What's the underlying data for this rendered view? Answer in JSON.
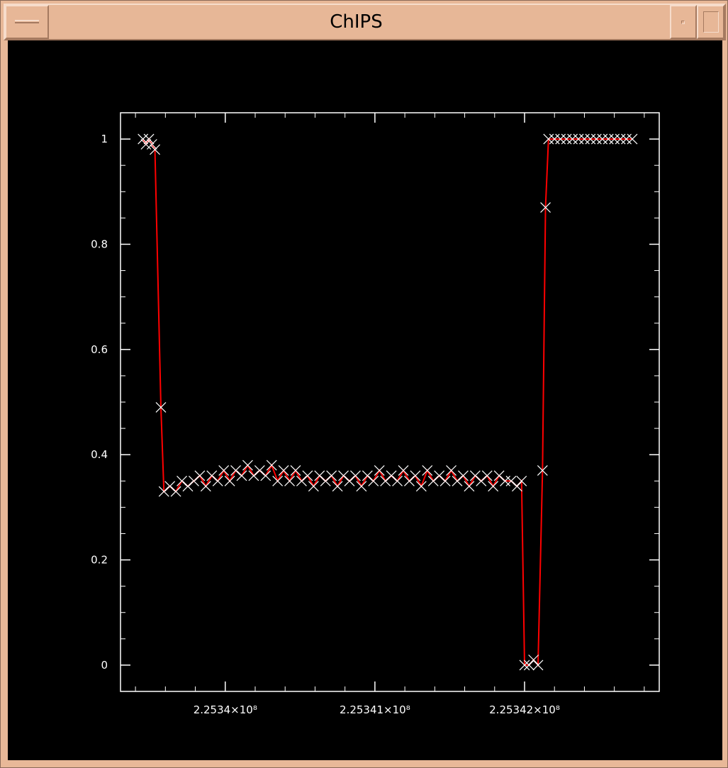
{
  "window": {
    "title": "ChIPS"
  },
  "icons": {
    "menu": "window-menu-icon",
    "minimize": "minimize-icon",
    "maximize": "maximize-icon"
  },
  "colors": {
    "frame": "#e8b898",
    "canvas": "#000000",
    "axes": "#ffffff",
    "line": "#ff0000",
    "markers": "#ffffff"
  },
  "chart_data": {
    "type": "line",
    "title": "",
    "xlabel": "",
    "ylabel": "",
    "marker": "x",
    "xlim": [
      225339.3,
      225342.9
    ],
    "ylim": [
      -0.05,
      1.05
    ],
    "y_ticks": [
      {
        "value": 0,
        "label": "0"
      },
      {
        "value": 0.2,
        "label": "0.2"
      },
      {
        "value": 0.4,
        "label": "0.4"
      },
      {
        "value": 0.6,
        "label": "0.6"
      },
      {
        "value": 0.8,
        "label": "0.8"
      },
      {
        "value": 1,
        "label": "1"
      }
    ],
    "x_ticks": [
      {
        "value": 225340,
        "label": "2.2534×10⁸"
      },
      {
        "value": 225341,
        "label": "2.25341×10⁸"
      },
      {
        "value": 225342,
        "label": "2.25342×10⁸"
      }
    ],
    "series": [
      {
        "points": [
          [
            225339.45,
            1.0
          ],
          [
            225339.47,
            0.99
          ],
          [
            225339.49,
            1.0
          ],
          [
            225339.51,
            0.99
          ],
          [
            225339.53,
            0.98
          ],
          [
            225339.57,
            0.49
          ],
          [
            225339.59,
            0.33
          ],
          [
            225339.63,
            0.34
          ],
          [
            225339.67,
            0.33
          ],
          [
            225339.71,
            0.35
          ],
          [
            225339.75,
            0.34
          ],
          [
            225339.79,
            0.35
          ],
          [
            225339.83,
            0.36
          ],
          [
            225339.87,
            0.34
          ],
          [
            225339.91,
            0.36
          ],
          [
            225339.95,
            0.35
          ],
          [
            225339.99,
            0.37
          ],
          [
            225340.03,
            0.35
          ],
          [
            225340.07,
            0.37
          ],
          [
            225340.11,
            0.36
          ],
          [
            225340.15,
            0.38
          ],
          [
            225340.19,
            0.36
          ],
          [
            225340.23,
            0.37
          ],
          [
            225340.27,
            0.36
          ],
          [
            225340.31,
            0.38
          ],
          [
            225340.35,
            0.35
          ],
          [
            225340.39,
            0.37
          ],
          [
            225340.43,
            0.35
          ],
          [
            225340.47,
            0.37
          ],
          [
            225340.51,
            0.35
          ],
          [
            225340.55,
            0.36
          ],
          [
            225340.59,
            0.34
          ],
          [
            225340.63,
            0.36
          ],
          [
            225340.67,
            0.35
          ],
          [
            225340.71,
            0.36
          ],
          [
            225340.75,
            0.34
          ],
          [
            225340.79,
            0.36
          ],
          [
            225340.83,
            0.35
          ],
          [
            225340.87,
            0.36
          ],
          [
            225340.91,
            0.34
          ],
          [
            225340.95,
            0.36
          ],
          [
            225340.99,
            0.35
          ],
          [
            225341.03,
            0.37
          ],
          [
            225341.07,
            0.35
          ],
          [
            225341.11,
            0.36
          ],
          [
            225341.15,
            0.35
          ],
          [
            225341.19,
            0.37
          ],
          [
            225341.23,
            0.35
          ],
          [
            225341.27,
            0.36
          ],
          [
            225341.31,
            0.34
          ],
          [
            225341.35,
            0.37
          ],
          [
            225341.39,
            0.35
          ],
          [
            225341.43,
            0.36
          ],
          [
            225341.47,
            0.35
          ],
          [
            225341.51,
            0.37
          ],
          [
            225341.55,
            0.35
          ],
          [
            225341.59,
            0.36
          ],
          [
            225341.63,
            0.34
          ],
          [
            225341.67,
            0.36
          ],
          [
            225341.71,
            0.35
          ],
          [
            225341.75,
            0.36
          ],
          [
            225341.79,
            0.34
          ],
          [
            225341.83,
            0.36
          ],
          [
            225341.87,
            0.35
          ],
          [
            225341.91,
            0.35
          ],
          [
            225341.95,
            0.34
          ],
          [
            225341.98,
            0.35
          ],
          [
            225342.0,
            0.0
          ],
          [
            225342.03,
            0.0
          ],
          [
            225342.06,
            0.01
          ],
          [
            225342.09,
            0.0
          ],
          [
            225342.12,
            0.37
          ],
          [
            225342.14,
            0.87
          ],
          [
            225342.16,
            1.0
          ],
          [
            225342.2,
            1.0
          ],
          [
            225342.24,
            1.0
          ],
          [
            225342.28,
            1.0
          ],
          [
            225342.32,
            1.0
          ],
          [
            225342.36,
            1.0
          ],
          [
            225342.4,
            1.0
          ],
          [
            225342.44,
            1.0
          ],
          [
            225342.48,
            1.0
          ],
          [
            225342.52,
            1.0
          ],
          [
            225342.56,
            1.0
          ],
          [
            225342.6,
            1.0
          ],
          [
            225342.64,
            1.0
          ],
          [
            225342.68,
            1.0
          ],
          [
            225342.72,
            1.0
          ]
        ]
      }
    ]
  }
}
